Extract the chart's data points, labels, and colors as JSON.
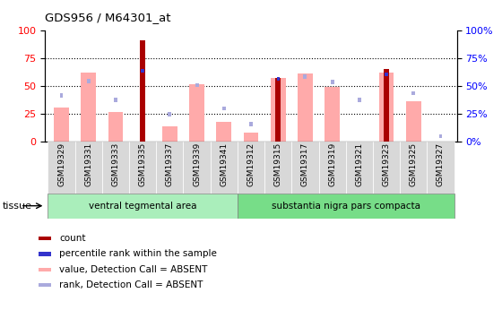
{
  "title": "GDS956 / M64301_at",
  "samples": [
    "GSM19329",
    "GSM19331",
    "GSM19333",
    "GSM19335",
    "GSM19337",
    "GSM19339",
    "GSM19341",
    "GSM19312",
    "GSM19315",
    "GSM19317",
    "GSM19319",
    "GSM19321",
    "GSM19323",
    "GSM19325",
    "GSM19327"
  ],
  "count": [
    0,
    0,
    0,
    91,
    0,
    0,
    0,
    0,
    57,
    0,
    0,
    0,
    65,
    0,
    0
  ],
  "percentile_rank": [
    0,
    0,
    0,
    65,
    0,
    0,
    0,
    0,
    58,
    0,
    0,
    0,
    62,
    0,
    0
  ],
  "value_absent": [
    30,
    62,
    26,
    0,
    13,
    51,
    17,
    8,
    57,
    61,
    49,
    0,
    62,
    36,
    0
  ],
  "rank_absent": [
    43,
    56,
    39,
    0,
    26,
    52,
    31,
    17,
    0,
    60,
    55,
    39,
    0,
    45,
    6
  ],
  "groups": [
    {
      "label": "ventral tegmental area",
      "start": 0,
      "end": 7
    },
    {
      "label": "substantia nigra pars compacta",
      "start": 7,
      "end": 15
    }
  ],
  "tissue_label": "tissue",
  "ylim": [
    0,
    100
  ],
  "yticks": [
    0,
    25,
    50,
    75,
    100
  ],
  "color_count": "#aa0000",
  "color_percentile": "#3333cc",
  "color_value_absent": "#ffaaaa",
  "color_rank_absent": "#aaaadd",
  "color_group1": "#aaeebb",
  "color_group2": "#77dd88",
  "legend_items": [
    {
      "label": "count",
      "color": "#aa0000"
    },
    {
      "label": "percentile rank within the sample",
      "color": "#3333cc"
    },
    {
      "label": "value, Detection Call = ABSENT",
      "color": "#ffaaaa"
    },
    {
      "label": "rank, Detection Call = ABSENT",
      "color": "#aaaadd"
    }
  ]
}
